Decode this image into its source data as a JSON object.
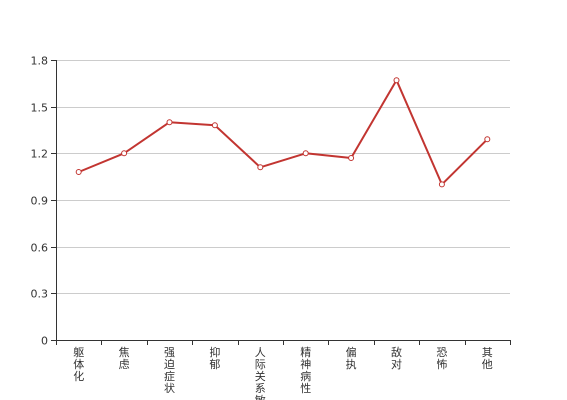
{
  "chart_data": {
    "type": "line",
    "categories": [
      "躯体化",
      "焦虑",
      "强迫症状",
      "抑郁",
      "人际关系敏感",
      "精神病性",
      "偏执",
      "敌对",
      "恐怖",
      "其他"
    ],
    "series": [
      {
        "values": [
          1.08,
          1.2,
          1.4,
          1.38,
          1.11,
          1.2,
          1.17,
          1.67,
          1.0,
          1.29
        ],
        "color": "#c23531"
      }
    ],
    "ylim": [
      0,
      1.8
    ],
    "yticks": [
      "0",
      "0.3",
      "0.6",
      "0.9",
      "1.2",
      "1.5",
      "1.8"
    ],
    "grid": true,
    "legend": "none",
    "title": "",
    "xlabel": "",
    "ylabel": ""
  },
  "colors": {
    "line": "#c23531",
    "grid": "#cccccc",
    "axis": "#333333"
  }
}
